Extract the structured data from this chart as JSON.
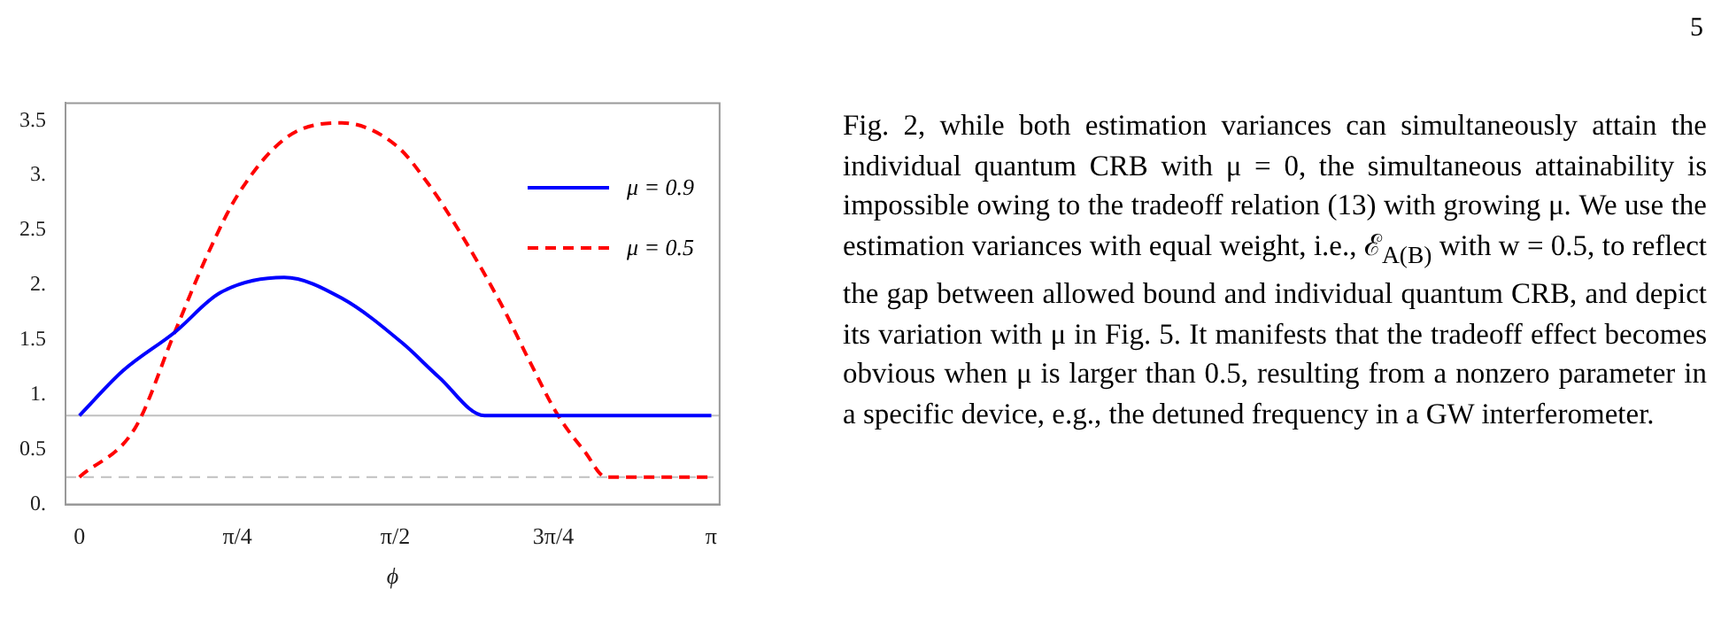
{
  "chart_data": {
    "type": "line",
    "xlabel": "ϕ",
    "xlim": [
      -0.069,
      3.183
    ],
    "ylim": [
      0,
      3.66
    ],
    "xticks": [
      {
        "value": 0,
        "label": "0"
      },
      {
        "value": 0.785398,
        "label": "π/4"
      },
      {
        "value": 1.570796,
        "label": "π/2"
      },
      {
        "value": 2.356194,
        "label": "3π/4"
      },
      {
        "value": 3.141593,
        "label": "π"
      }
    ],
    "yticks": [
      {
        "value": 0,
        "label": "0."
      },
      0.5,
      {
        "value": 1,
        "label": "1."
      },
      1.5,
      {
        "value": 2,
        "label": "2."
      },
      2.5,
      {
        "value": 3,
        "label": "3."
      },
      3.5
    ],
    "series": [
      {
        "name": "μ = 0.9",
        "color": "#0000ff",
        "line_style": "solid",
        "x": [
          0,
          0.217,
          0.474,
          0.7,
          1.018,
          1.305,
          1.607,
          1.788,
          2.014,
          3.142
        ],
        "values": [
          0.81,
          1.22,
          1.57,
          1.93,
          2.07,
          1.88,
          1.47,
          1.16,
          0.81,
          0.81
        ]
      },
      {
        "name": "μ = 0.5",
        "color": "#ff0000",
        "line_style": "dashed",
        "x": [
          0,
          0.278,
          0.474,
          0.64,
          0.79,
          1.033,
          1.305,
          1.577,
          1.728,
          1.849,
          2.09,
          2.24,
          2.377,
          2.513,
          2.619,
          3.142
        ],
        "values": [
          0.25,
          0.7,
          1.57,
          2.29,
          2.83,
          3.35,
          3.48,
          3.27,
          2.94,
          2.61,
          1.85,
          1.3,
          0.82,
          0.48,
          0.25,
          0.25
        ]
      }
    ],
    "ref_lines": [
      {
        "axis": "y",
        "value": 0.81,
        "color": "#c0c0c0",
        "line_style": "solid"
      },
      {
        "axis": "y",
        "value": 0.25,
        "color": "#c0c0c0",
        "line_style": "dashed"
      }
    ],
    "legend": "top right",
    "grid": false,
    "annotations": [
      "5",
      "Fig. 2, while both estimation variances can simultaneously attain the individual quantum CRB with μ = 0, the simultaneous attainability is impossible owing to the tradeoff relation (13) with growing μ. We use the estimation variances with equal weight, i.e., ℰ$_{A(B)}$ with w = 0.5, to reflect the gap between allowed bound and individual quantum CRB, and depict its variation with μ in Fig. 5. It manifests that the tradeoff effect becomes obvious when μ is larger than 0.5, resulting from a nonzero parameter in a specific device, e.g., the detuned frequency in a GW interferometer."
    ]
  }
}
